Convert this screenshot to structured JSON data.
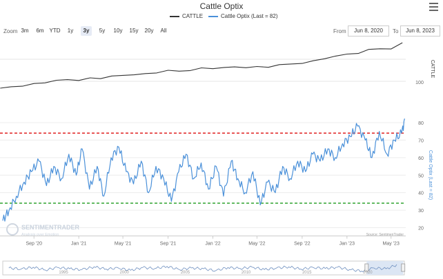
{
  "title": "Cattle Optix",
  "legend": [
    {
      "label": "CATTLE",
      "color": "#333333"
    },
    {
      "label": "Cattle Optix (Last = 82)",
      "color": "#4a90d9"
    }
  ],
  "zoom": {
    "label": "Zoom",
    "buttons": [
      "3m",
      "6m",
      "YTD",
      "1y",
      "3y",
      "5y",
      "10y",
      "15y",
      "20y",
      "All"
    ],
    "active": "3y"
  },
  "range": {
    "from_label": "From",
    "from_value": "Jun 8, 2020",
    "to_label": "To",
    "to_value": "Jun 8, 2023"
  },
  "watermark": {
    "name": "SENTIMENTRADER",
    "tagline": "Analysis over Emotion"
  },
  "source": "Source: SentimenTrader",
  "colors": {
    "cattle": "#333333",
    "optix": "#4a90d9",
    "upper_line": "#e02020",
    "lower_line": "#1a9a1a",
    "navigator_fill": "#dce6f4"
  },
  "chart_data": [
    {
      "type": "line",
      "title": "",
      "ylabel": "CATTLE",
      "y_tick_labels": [
        "100"
      ],
      "x_tick_labels": [],
      "series": [
        {
          "name": "CATTLE",
          "x": [
            "2020-06",
            "2020-07",
            "2020-08",
            "2020-09",
            "2020-10",
            "2020-11",
            "2020-12",
            "2021-01",
            "2021-02",
            "2021-03",
            "2021-04",
            "2021-05",
            "2021-06",
            "2021-07",
            "2021-08",
            "2021-09",
            "2021-10",
            "2021-11",
            "2021-12",
            "2022-01",
            "2022-02",
            "2022-03",
            "2022-04",
            "2022-05",
            "2022-06",
            "2022-07",
            "2022-08",
            "2022-09",
            "2022-10",
            "2022-11",
            "2022-12",
            "2023-01",
            "2023-02",
            "2023-03",
            "2023-04",
            "2023-05",
            "2023-06"
          ],
          "values": [
            96,
            97,
            98,
            99,
            100,
            101,
            102,
            102,
            103,
            103,
            104,
            105,
            106,
            106,
            107,
            108,
            108,
            109,
            110,
            110,
            110,
            111,
            111,
            111,
            111,
            112,
            113,
            114,
            115,
            117,
            118,
            120,
            121,
            123,
            124,
            123,
            128
          ]
        }
      ]
    },
    {
      "type": "line",
      "title": "",
      "ylabel": "Cattle Optix (Last = 82)",
      "ylim": [
        18,
        86
      ],
      "y_ticks": [
        20,
        30,
        40,
        50,
        60,
        70,
        80
      ],
      "x_tick_labels": [
        "Sep '20",
        "Jan '21",
        "May '21",
        "Sep '21",
        "Jan '22",
        "May '22",
        "Sep '22",
        "Jan '23",
        "May '23"
      ],
      "reference_lines": [
        74,
        34
      ],
      "series": [
        {
          "name": "Cattle Optix (Last = 82)",
          "x": [
            "2020-06-08",
            "2020-06-25",
            "2020-07-15",
            "2020-08-05",
            "2020-08-25",
            "2020-09-15",
            "2020-10-05",
            "2020-10-25",
            "2020-11-15",
            "2020-12-05",
            "2020-12-25",
            "2021-01-10",
            "2021-01-30",
            "2021-02-20",
            "2021-03-10",
            "2021-03-30",
            "2021-04-20",
            "2021-05-10",
            "2021-05-30",
            "2021-06-20",
            "2021-07-10",
            "2021-07-30",
            "2021-08-20",
            "2021-09-10",
            "2021-09-30",
            "2021-10-20",
            "2021-11-10",
            "2021-11-30",
            "2021-12-20",
            "2022-01-10",
            "2022-01-30",
            "2022-02-20",
            "2022-03-10",
            "2022-03-30",
            "2022-04-20",
            "2022-05-10",
            "2022-05-30",
            "2022-06-20",
            "2022-07-10",
            "2022-07-30",
            "2022-08-20",
            "2022-09-10",
            "2022-09-30",
            "2022-10-20",
            "2022-11-10",
            "2022-11-30",
            "2022-12-20",
            "2023-01-10",
            "2023-01-30",
            "2023-02-20",
            "2023-03-10",
            "2023-03-30",
            "2023-04-20",
            "2023-05-10",
            "2023-05-30",
            "2023-06-08"
          ],
          "values": [
            24,
            30,
            38,
            46,
            52,
            58,
            44,
            55,
            48,
            62,
            50,
            65,
            42,
            55,
            38,
            60,
            66,
            52,
            45,
            58,
            40,
            55,
            48,
            35,
            52,
            62,
            48,
            57,
            42,
            55,
            38,
            58,
            48,
            40,
            52,
            33,
            46,
            40,
            55,
            48,
            58,
            52,
            62,
            58,
            65,
            60,
            68,
            72,
            78,
            70,
            60,
            75,
            62,
            70,
            74,
            82
          ]
        }
      ]
    },
    {
      "type": "area",
      "title": "",
      "x_tick_labels": [
        "1995",
        "2000",
        "2005",
        "2010",
        "2015",
        "2020"
      ],
      "selected_range": [
        "2020",
        "2023"
      ],
      "series": [
        {
          "name": "",
          "x": [
            1991,
            1992,
            1993,
            1994,
            1995,
            1996,
            1997,
            1998,
            1999,
            2000,
            2001,
            2002,
            2003,
            2004,
            2005,
            2006,
            2007,
            2008,
            2009,
            2010,
            2011,
            2012,
            2013,
            2014,
            2015,
            2016,
            2017,
            2018,
            2019,
            2020,
            2021,
            2022,
            2023
          ],
          "values": [
            55,
            48,
            60,
            42,
            58,
            50,
            45,
            62,
            48,
            55,
            40,
            58,
            52,
            65,
            45,
            55,
            50,
            38,
            58,
            52,
            60,
            45,
            55,
            62,
            48,
            58,
            52,
            60,
            45,
            35,
            55,
            50,
            78
          ]
        }
      ]
    }
  ]
}
